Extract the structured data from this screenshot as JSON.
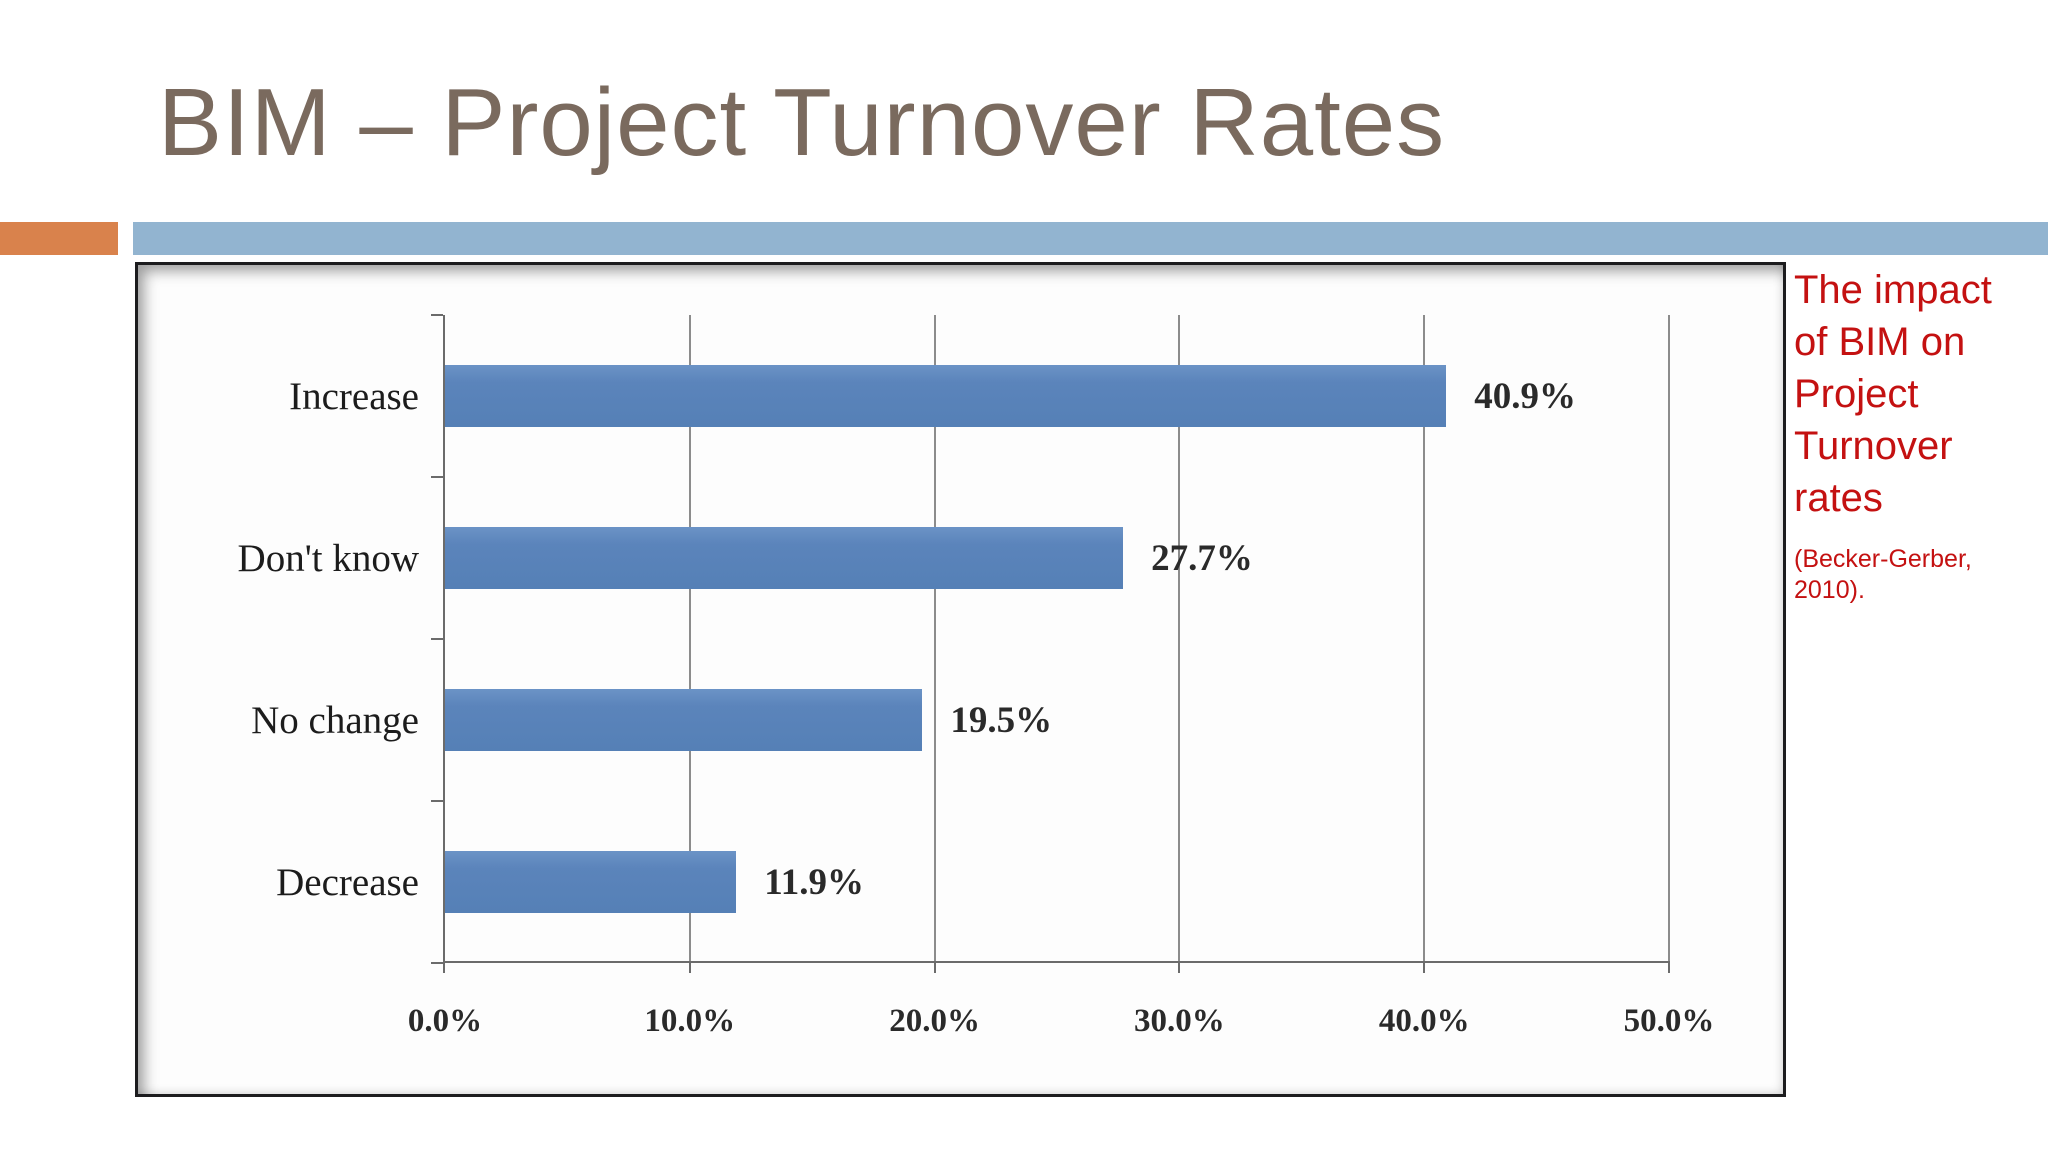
{
  "slide": {
    "title": "BIM – Project Turnover Rates"
  },
  "side_note": {
    "heading": "The impact\nof BIM on\nProject\nTurnover\nrates",
    "citation": "(Becker-Gerber,\n2010)."
  },
  "chart_data": {
    "type": "bar",
    "orientation": "horizontal",
    "categories": [
      "Increase",
      "Don't know",
      "No change",
      "Decrease"
    ],
    "values": [
      40.9,
      27.7,
      19.5,
      11.9
    ],
    "value_labels": [
      "40.9%",
      "27.7%",
      "19.5%",
      "11.9%"
    ],
    "x_tick_labels": [
      "0.0%",
      "10.0%",
      "20.0%",
      "30.0%",
      "40.0%",
      "50.0%"
    ],
    "xlim": [
      0,
      50
    ],
    "grid": true,
    "title": "",
    "xlabel": "",
    "ylabel": ""
  },
  "colors": {
    "title_brown": "#7a6a5e",
    "accent_orange": "#d9824c",
    "band_blue": "#92b4d0",
    "bar_blue": "#5b84bb",
    "note_red": "#c41111",
    "gridline_gray": "#8c8c8c"
  }
}
